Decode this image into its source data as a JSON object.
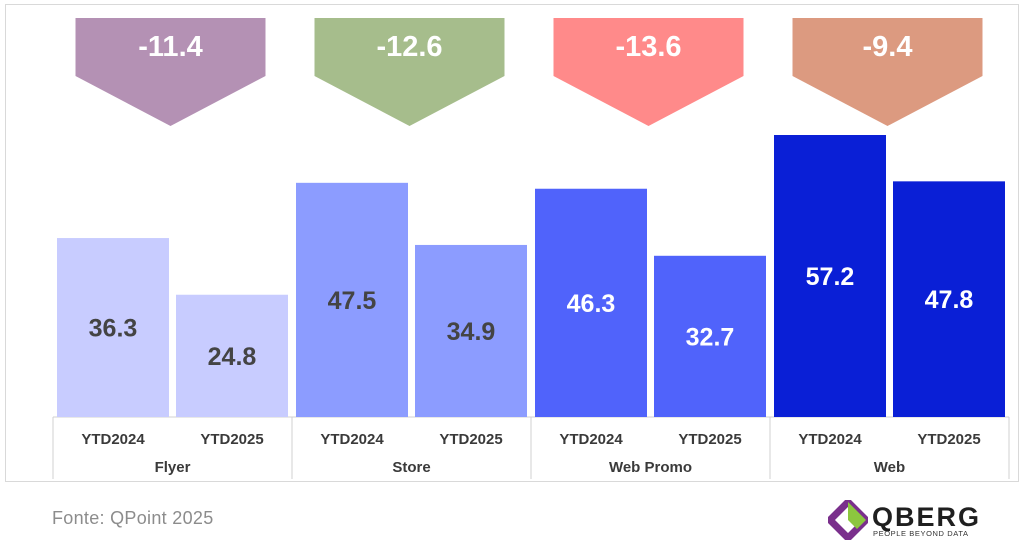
{
  "chart_data": {
    "type": "bar",
    "groups": [
      "Flyer",
      "Store",
      "Web Promo",
      "Web"
    ],
    "periods": [
      "YTD2024",
      "YTD2025"
    ],
    "series": [
      {
        "name": "YTD2024",
        "values": [
          36.3,
          47.5,
          46.3,
          57.2
        ]
      },
      {
        "name": "YTD2025",
        "values": [
          24.8,
          34.9,
          32.7,
          47.8
        ]
      }
    ],
    "bar_labels": [
      [
        "36.3",
        "24.8"
      ],
      [
        "47.5",
        "34.9"
      ],
      [
        "46.3",
        "32.7"
      ],
      [
        "57.2",
        "47.8"
      ]
    ],
    "deltas": [
      "-11.4",
      "-12.6",
      "-13.6",
      "-9.4"
    ],
    "delta_values": [
      -11.4,
      -12.6,
      -13.6,
      -9.4
    ],
    "ylim": [
      0,
      60
    ],
    "bar_colors": [
      [
        "#c8ccff",
        "#c8ccff"
      ],
      [
        "#8c9cff",
        "#8c9cff"
      ],
      [
        "#5063fb",
        "#5063fb"
      ],
      [
        "#0a1fd6",
        "#0a1fd6"
      ]
    ],
    "value_text_colors": [
      "#444444",
      "#444444",
      "#ffffff",
      "#ffffff"
    ],
    "delta_colors": [
      "#b491b4",
      "#a6bd8c",
      "#ff8a8a",
      "#dc9a80"
    ]
  },
  "footer": {
    "source": "Fonte: QPoint 2025"
  },
  "logo": {
    "name": "QBERG",
    "tagline": "PEOPLE BEYOND DATA"
  }
}
